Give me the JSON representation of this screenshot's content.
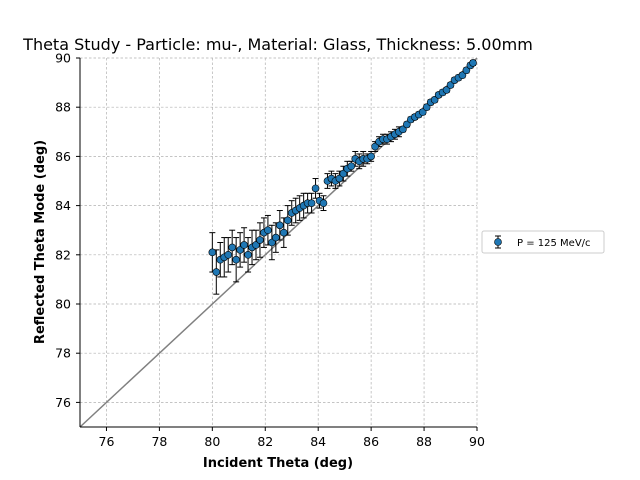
{
  "chart_data": {
    "type": "scatter",
    "title": "Theta Study - Particle: mu-, Material: Glass, Thickness: 5.00mm",
    "xlabel": "Incident Theta (deg)",
    "ylabel": "Reflected Theta Mode (deg)",
    "xlim": [
      75,
      90
    ],
    "ylim": [
      75,
      90
    ],
    "xticks": [
      76,
      78,
      80,
      82,
      84,
      86,
      88,
      90
    ],
    "yticks": [
      76,
      78,
      80,
      82,
      84,
      86,
      88,
      90
    ],
    "grid": true,
    "legend_position": "right",
    "reference_line": {
      "x": [
        75,
        90
      ],
      "y": [
        75,
        90
      ],
      "color": "#808080"
    },
    "series": [
      {
        "name": "P = 125 MeV/c",
        "color": "#1f77b4",
        "x": [
          80.0,
          80.15,
          80.3,
          80.45,
          80.6,
          80.75,
          80.9,
          81.05,
          81.2,
          81.35,
          81.5,
          81.65,
          81.8,
          81.95,
          82.1,
          82.25,
          82.4,
          82.55,
          82.7,
          82.85,
          83.0,
          83.15,
          83.3,
          83.45,
          83.6,
          83.75,
          83.9,
          84.05,
          84.2,
          84.35,
          84.5,
          84.65,
          84.8,
          84.95,
          85.1,
          85.25,
          85.4,
          85.55,
          85.7,
          85.85,
          86.0,
          86.15,
          86.3,
          86.45,
          86.6,
          86.75,
          86.9,
          87.05,
          87.2,
          87.35,
          87.5,
          87.65,
          87.8,
          87.95,
          88.1,
          88.25,
          88.4,
          88.55,
          88.7,
          88.85,
          89.0,
          89.15,
          89.3,
          89.45,
          89.6,
          89.75,
          89.85
        ],
        "y": [
          82.1,
          81.3,
          81.8,
          81.9,
          82.0,
          82.3,
          81.8,
          82.2,
          82.4,
          82.0,
          82.3,
          82.4,
          82.6,
          82.9,
          83.0,
          82.5,
          82.7,
          83.2,
          82.9,
          83.4,
          83.7,
          83.8,
          83.9,
          84.0,
          84.1,
          84.1,
          84.7,
          84.2,
          84.1,
          85.0,
          85.1,
          85.0,
          85.1,
          85.3,
          85.5,
          85.6,
          85.9,
          85.8,
          85.9,
          85.9,
          86.0,
          86.4,
          86.6,
          86.7,
          86.7,
          86.8,
          86.9,
          87.0,
          87.1,
          87.3,
          87.5,
          87.6,
          87.7,
          87.8,
          88.0,
          88.2,
          88.3,
          88.5,
          88.6,
          88.7,
          88.9,
          89.1,
          89.2,
          89.3,
          89.5,
          89.7,
          89.8
        ],
        "yerr": [
          0.8,
          0.9,
          0.7,
          0.8,
          0.7,
          0.7,
          0.9,
          0.7,
          0.7,
          0.7,
          0.7,
          0.6,
          0.7,
          0.6,
          0.6,
          0.7,
          0.6,
          0.6,
          0.6,
          0.6,
          0.5,
          0.5,
          0.5,
          0.5,
          0.4,
          0.4,
          0.4,
          0.3,
          0.3,
          0.3,
          0.3,
          0.3,
          0.3,
          0.3,
          0.3,
          0.2,
          0.3,
          0.3,
          0.3,
          0.2,
          0.2,
          0.2,
          0.2,
          0.2,
          0.2,
          0.2,
          0.2,
          0.2,
          0.1,
          0.1,
          0.1,
          0.1,
          0.1,
          0.1,
          0.1,
          0.1,
          0.1,
          0.1,
          0.1,
          0.1,
          0.1,
          0.1,
          0.1,
          0.1,
          0.1,
          0.1,
          0.1
        ]
      }
    ]
  }
}
